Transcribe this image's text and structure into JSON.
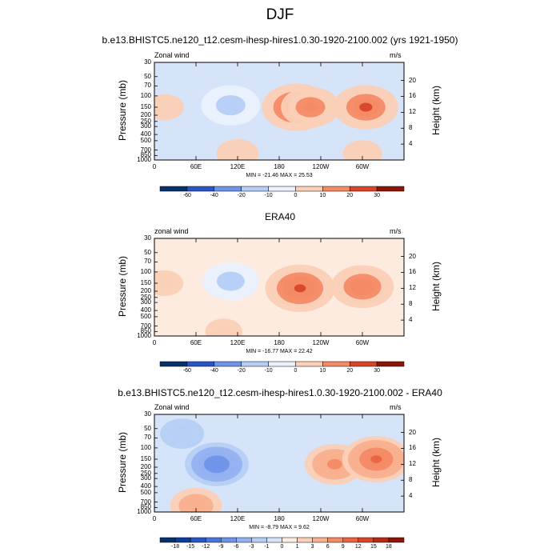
{
  "title": "DJF",
  "panels": [
    {
      "title": "b.e13.BHISTC5.ne120_t12.cesm-ihesp-hires1.0.30-1920-2100.002 (yrs 1921-1950)",
      "left_label": "Zonal wind",
      "right_label": "m/s",
      "min_max": "MIN = -21.46   MAX = 25.53",
      "colorbar_labels": [
        "-60",
        "-40",
        "-20",
        "-10",
        "0",
        "10",
        "20",
        "30"
      ],
      "colors": [
        "#08306b",
        "#0b3c9a",
        "#2b55c4",
        "#4a74dd",
        "#6f93e8",
        "#93b2f0",
        "#b6cdf6",
        "#d6e4fa",
        "#e9f1fc",
        "#fdebe0",
        "#fbd0b7",
        "#f8b08e",
        "#f48a66",
        "#ea6443",
        "#d84629",
        "#b82a14",
        "#8a1506"
      ]
    },
    {
      "title": "ERA40",
      "left_label": "zonal wind",
      "right_label": "m/s",
      "min_max": "MIN = -16.77   MAX = 22.42",
      "colorbar_labels": [
        "-60",
        "-40",
        "-20",
        "-10",
        "0",
        "10",
        "20",
        "30"
      ],
      "colors": [
        "#08306b",
        "#0b3c9a",
        "#2b55c4",
        "#4a74dd",
        "#6f93e8",
        "#93b2f0",
        "#b6cdf6",
        "#d6e4fa",
        "#e9f1fc",
        "#fdebe0",
        "#fbd0b7",
        "#f8b08e",
        "#f48a66",
        "#ea6443",
        "#d84629",
        "#b82a14",
        "#8a1506"
      ]
    },
    {
      "title": "b.e13.BHISTC5.ne120_t12.cesm-ihesp-hires1.0.30-1920-2100.002 - ERA40",
      "left_label": "Zonal wind",
      "right_label": "m/s",
      "min_max": "MIN = -8.79   MAX = 9.62",
      "colorbar_labels": [
        "-18",
        "-15",
        "-12",
        "-9",
        "-6",
        "-3",
        "-1",
        "0",
        "1",
        "3",
        "6",
        "9",
        "12",
        "15",
        "18"
      ],
      "colors": [
        "#08306b",
        "#0b3c9a",
        "#2b55c4",
        "#4a74dd",
        "#6f93e8",
        "#93b2f0",
        "#b6cdf6",
        "#d6e4fa",
        "#e9f1fc",
        "#fdebe0",
        "#fbd0b7",
        "#f8b08e",
        "#f48a66",
        "#ea6443",
        "#d84629",
        "#b82a14",
        "#8a1506"
      ]
    }
  ],
  "chart_data": [
    {
      "type": "heatmap",
      "title": "b.e13.BHISTC5.ne120_t12.cesm-ihesp-hires1.0.30-1920-2100.002 (yrs 1921-1950)",
      "xlabel": "",
      "ylabel": "Pressure (mb)",
      "y2label": "Height (km)",
      "x_ticks": [
        "0",
        "60E",
        "120E",
        "180",
        "120W",
        "60W"
      ],
      "y_ticks": [
        "30",
        "50",
        "70",
        "100",
        "150",
        "200",
        "250",
        "300",
        "400",
        "500",
        "700",
        "850",
        "1000"
      ],
      "y2_ticks": [
        "20",
        "16",
        "12",
        "8",
        "4"
      ],
      "value_min": -21.46,
      "value_max": 25.53,
      "levels": [
        -60,
        -40,
        -20,
        -10,
        0,
        10,
        20,
        30
      ],
      "features": [
        {
          "lon": 15,
          "p": 150,
          "value": 4
        },
        {
          "lon": 110,
          "p": 140,
          "value": -18
        },
        {
          "lon": 205,
          "p": 150,
          "value": 25
        },
        {
          "lon": 225,
          "p": 150,
          "value": 18
        },
        {
          "lon": 305,
          "p": 150,
          "value": 22
        },
        {
          "lon": 120,
          "p": 800,
          "value": 7
        },
        {
          "lon": 300,
          "p": 800,
          "value": 5
        }
      ]
    },
    {
      "type": "heatmap",
      "title": "ERA40",
      "xlabel": "",
      "ylabel": "Pressure (mb)",
      "y2label": "Height (km)",
      "x_ticks": [
        "0",
        "60E",
        "120E",
        "180",
        "120W",
        "60W"
      ],
      "y_ticks": [
        "30",
        "50",
        "70",
        "100",
        "150",
        "200",
        "250",
        "300",
        "400",
        "500",
        "700",
        "850",
        "1000"
      ],
      "y2_ticks": [
        "20",
        "16",
        "12",
        "8",
        "4"
      ],
      "value_min": -16.77,
      "value_max": 22.42,
      "levels": [
        -60,
        -40,
        -20,
        -10,
        0,
        10,
        20,
        30
      ],
      "features": [
        {
          "lon": 15,
          "p": 150,
          "value": 3
        },
        {
          "lon": 110,
          "p": 140,
          "value": -14
        },
        {
          "lon": 210,
          "p": 180,
          "value": 22
        },
        {
          "lon": 300,
          "p": 170,
          "value": 18
        },
        {
          "lon": 100,
          "p": 850,
          "value": 3
        }
      ]
    },
    {
      "type": "heatmap",
      "title": "b.e13.BHISTC5.ne120_t12.cesm-ihesp-hires1.0.30-1920-2100.002 - ERA40",
      "xlabel": "",
      "ylabel": "Pressure (mb)",
      "y2label": "Height (km)",
      "x_ticks": [
        "0",
        "60E",
        "120E",
        "180",
        "120W",
        "60W"
      ],
      "y_ticks": [
        "30",
        "50",
        "70",
        "100",
        "150",
        "200",
        "250",
        "300",
        "400",
        "500",
        "700",
        "850",
        "1000"
      ],
      "y2_ticks": [
        "20",
        "16",
        "12",
        "8",
        "4"
      ],
      "value_min": -8.79,
      "value_max": 9.62,
      "levels": [
        -18,
        -15,
        -12,
        -9,
        -6,
        -3,
        -1,
        0,
        1,
        3,
        6,
        9,
        12,
        15,
        18
      ],
      "features": [
        {
          "lon": 90,
          "p": 180,
          "value": -8
        },
        {
          "lon": 260,
          "p": 180,
          "value": 7
        },
        {
          "lon": 320,
          "p": 150,
          "value": 9
        },
        {
          "lon": 60,
          "p": 800,
          "value": 5
        },
        {
          "lon": 40,
          "p": 60,
          "value": -3
        }
      ]
    }
  ]
}
